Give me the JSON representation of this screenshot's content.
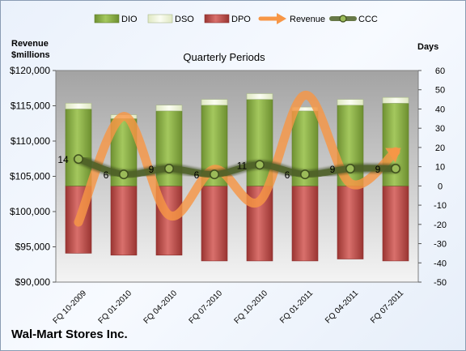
{
  "chart_data": {
    "type": "bar",
    "title": "Quarterly Periods",
    "company": "Wal-Mart Stores Inc.",
    "ylabel_left": [
      "Revenue",
      "$millions"
    ],
    "ylabel_right": "Days",
    "categories": [
      "FQ 10-2009",
      "FQ 01-2010",
      "FQ 04-2010",
      "FQ 07-2010",
      "FQ 10-2010",
      "FQ 01-2011",
      "FQ 04-2011",
      "FQ 07-2011"
    ],
    "left_axis": {
      "min": 90000,
      "max": 120000,
      "step": 5000,
      "ticks": [
        "$90,000",
        "$95,000",
        "$100,000",
        "$105,000",
        "$110,000",
        "$115,000",
        "$120,000"
      ]
    },
    "right_axis": {
      "min": -50,
      "max": 60,
      "step": 10,
      "ticks": [
        "-50",
        "-40",
        "-30",
        "-20",
        "-10",
        "0",
        "10",
        "20",
        "30",
        "40",
        "50",
        "60"
      ]
    },
    "stacked_days": {
      "DPO": [
        -35,
        -36,
        -36,
        -39,
        -39,
        -39,
        -38,
        -39
      ],
      "DIO": [
        40,
        35,
        39,
        42,
        45,
        39,
        42,
        43
      ],
      "DSO": [
        3,
        2,
        3,
        3,
        3,
        2,
        3,
        3
      ]
    },
    "series": [
      {
        "name": "DIO",
        "color": "#8cb049"
      },
      {
        "name": "DSO",
        "color": "#eef5d6"
      },
      {
        "name": "DPO",
        "color": "#c0504d"
      },
      {
        "name": "Revenue",
        "color": "#f79646",
        "values": [
          98500,
          113500,
          99500,
          106000,
          101500,
          116500,
          104000,
          108500
        ]
      },
      {
        "name": "CCC",
        "color": "#4f6228",
        "values": [
          14,
          6,
          9,
          6,
          11,
          6,
          9,
          9
        ],
        "labels": [
          "14",
          "6",
          "9",
          "6",
          "11",
          "6",
          "9",
          "9"
        ]
      }
    ],
    "legend_position": "top"
  }
}
